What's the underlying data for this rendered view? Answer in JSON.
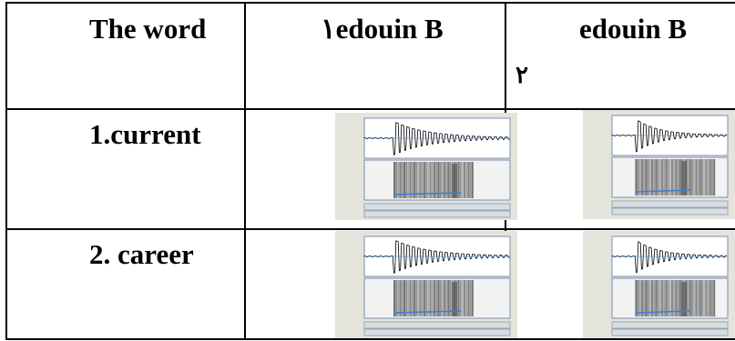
{
  "table": {
    "header": [
      "The word",
      "١edouin B",
      [
        "edouin B",
        "٢"
      ]
    ],
    "rows": [
      "1.current",
      "2. career"
    ]
  }
}
